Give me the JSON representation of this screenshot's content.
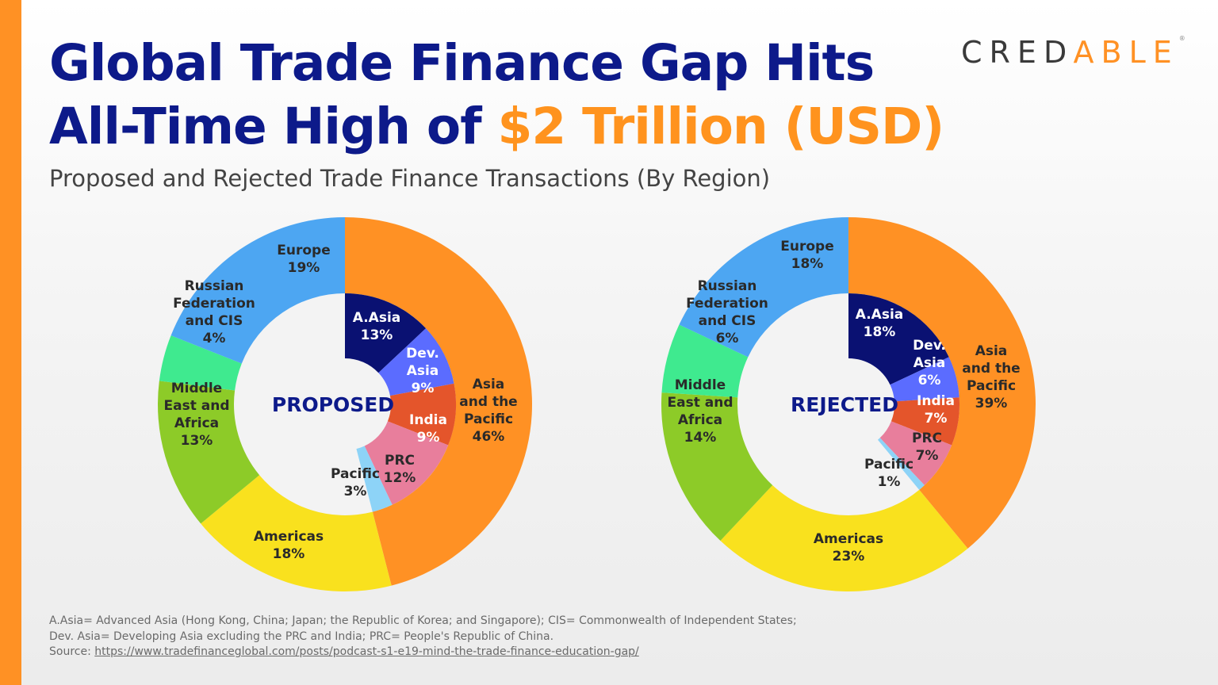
{
  "header": {
    "title_line1": "Global Trade Finance Gap Hits",
    "title_line2_prefix": "All-Time High of ",
    "title_line2_highlight": "$2 Trillion (USD)",
    "subtitle": "Proposed and Rejected Trade Finance Transactions (By Region)"
  },
  "logo": {
    "text_before": "CRED",
    "text_mark": "A",
    "text_after": "BLE",
    "registered": "®"
  },
  "colors": {
    "accent": "#FF9124",
    "title": "#0D1A8A",
    "asia_pacific": "#FF9124",
    "a_asia": "#0A1172",
    "dev_asia": "#5B6CFF",
    "india": "#E4552B",
    "prc": "#E87E9C",
    "pacific": "#8DD3F7",
    "americas": "#F9E11E",
    "middle_east_africa": "#8DCB28",
    "russian_federation_cis": "#3FEA8F",
    "europe": "#4DA6F2"
  },
  "chart_data": [
    {
      "type": "pie",
      "subtype": "nested-donut",
      "center_label": "PROPOSED",
      "outer": [
        {
          "label": [
            "Asia",
            "and the",
            "Pacific"
          ],
          "value": 46,
          "text": "46%",
          "color": "#FF9124"
        },
        {
          "label": [
            "Americas"
          ],
          "value": 18,
          "text": "18%",
          "color": "#F9E11E"
        },
        {
          "label": [
            "Middle",
            "East and",
            "Africa"
          ],
          "value": 13,
          "text": "13%",
          "color": "#8DCB28"
        },
        {
          "label": [
            "Russian",
            "Federation",
            "and CIS"
          ],
          "value": 4,
          "text": "4%",
          "color": "#3FEA8F"
        },
        {
          "label": [
            "Europe"
          ],
          "value": 19,
          "text": "19%",
          "color": "#4DA6F2"
        }
      ],
      "inner": [
        {
          "label": [
            "A.Asia"
          ],
          "value": 13,
          "text": "13%",
          "color": "#0A1172"
        },
        {
          "label": [
            "Dev.",
            "Asia"
          ],
          "value": 9,
          "text": "9%",
          "color": "#5B6CFF"
        },
        {
          "label": [
            "India"
          ],
          "value": 9,
          "text": "9%",
          "color": "#E4552B"
        },
        {
          "label": [
            "PRC"
          ],
          "value": 12,
          "text": "12%",
          "color": "#E87E9C"
        },
        {
          "label": [
            "Pacific"
          ],
          "value": 3,
          "text": "3%",
          "color": "#8DD3F7"
        }
      ]
    },
    {
      "type": "pie",
      "subtype": "nested-donut",
      "center_label": "REJECTED",
      "outer": [
        {
          "label": [
            "Asia",
            "and the",
            "Pacific"
          ],
          "value": 39,
          "text": "39%",
          "color": "#FF9124"
        },
        {
          "label": [
            "Americas"
          ],
          "value": 23,
          "text": "23%",
          "color": "#F9E11E"
        },
        {
          "label": [
            "Middle",
            "East and",
            "Africa"
          ],
          "value": 14,
          "text": "14%",
          "color": "#8DCB28"
        },
        {
          "label": [
            "Russian",
            "Federation",
            "and CIS"
          ],
          "value": 6,
          "text": "6%",
          "color": "#3FEA8F"
        },
        {
          "label": [
            "Europe"
          ],
          "value": 18,
          "text": "18%",
          "color": "#4DA6F2"
        }
      ],
      "inner": [
        {
          "label": [
            "A.Asia"
          ],
          "value": 18,
          "text": "18%",
          "color": "#0A1172"
        },
        {
          "label": [
            "Dev.",
            "Asia"
          ],
          "value": 6,
          "text": "6%",
          "color": "#5B6CFF"
        },
        {
          "label": [
            "India"
          ],
          "value": 7,
          "text": "7%",
          "color": "#E4552B"
        },
        {
          "label": [
            "PRC"
          ],
          "value": 7,
          "text": "7%",
          "color": "#E87E9C"
        },
        {
          "label": [
            "Pacific"
          ],
          "value": 1,
          "text": "1%",
          "color": "#8DD3F7"
        }
      ]
    }
  ],
  "footer": {
    "line1": "A.Asia= Advanced Asia (Hong Kong, China; Japan; the Republic of Korea; and Singapore); CIS= Commonwealth of Independent States;",
    "line2": "Dev. Asia= Developing Asia excluding the PRC and India; PRC= People's Republic of China.",
    "source_label": "Source: ",
    "source_url": "https://www.tradefinanceglobal.com/posts/podcast-s1-e19-mind-the-trade-finance-education-gap/"
  }
}
